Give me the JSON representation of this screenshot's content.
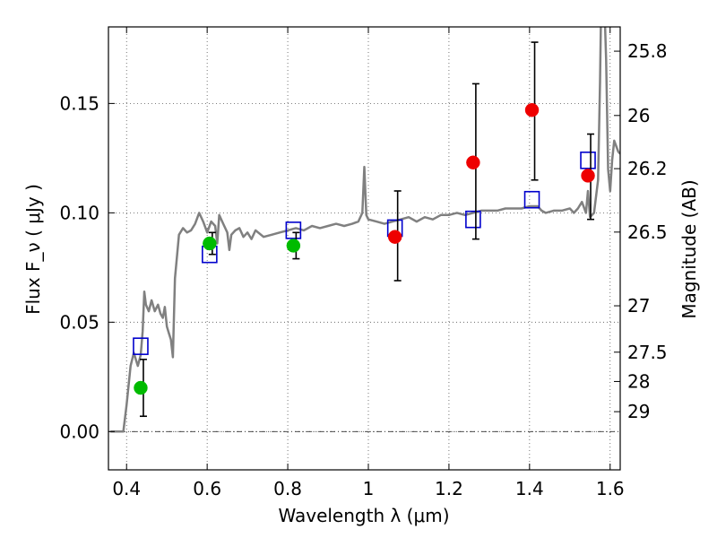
{
  "chart_data": {
    "type": "scatter",
    "xlabel": "Wavelength λ (μm)",
    "ylabel_left": "Flux F_ν ( μJy )",
    "ylabel_right": "Magnitude (AB)",
    "xlim": [
      0.355,
      1.625
    ],
    "ylim": [
      -0.0175,
      0.185
    ],
    "grid": true,
    "x_ticks": [
      {
        "value": 0.4,
        "label": "0.4"
      },
      {
        "value": 0.6,
        "label": "0.6"
      },
      {
        "value": 0.8,
        "label": "0.8"
      },
      {
        "value": 1.0,
        "label": "1"
      },
      {
        "value": 1.2,
        "label": "1.2"
      },
      {
        "value": 1.4,
        "label": "1.4"
      },
      {
        "value": 1.6,
        "label": "1.6"
      }
    ],
    "y_ticks": [
      {
        "value": 0.0,
        "label": "0.00"
      },
      {
        "value": 0.05,
        "label": "0.05"
      },
      {
        "value": 0.1,
        "label": "0.10"
      },
      {
        "value": 0.15,
        "label": "0.15"
      }
    ],
    "right_ticks": [
      {
        "flux": 0.1739,
        "label": "25.8"
      },
      {
        "flux": 0.1445,
        "label": "26"
      },
      {
        "flux": 0.1202,
        "label": "26.2"
      },
      {
        "flux": 0.0912,
        "label": "26.5"
      },
      {
        "flux": 0.0575,
        "label": "27"
      },
      {
        "flux": 0.0363,
        "label": "27.5"
      },
      {
        "flux": 0.0229,
        "label": "28"
      },
      {
        "flux": 0.0091,
        "label": "29"
      }
    ],
    "series": [
      {
        "name": "model_spectrum",
        "kind": "line",
        "color": "#808080",
        "points": [
          [
            0.36,
            0.0
          ],
          [
            0.38,
            0.0
          ],
          [
            0.392,
            0.0
          ],
          [
            0.4,
            0.012
          ],
          [
            0.41,
            0.03
          ],
          [
            0.418,
            0.036
          ],
          [
            0.428,
            0.03
          ],
          [
            0.435,
            0.035
          ],
          [
            0.44,
            0.046
          ],
          [
            0.444,
            0.064
          ],
          [
            0.448,
            0.058
          ],
          [
            0.455,
            0.055
          ],
          [
            0.462,
            0.06
          ],
          [
            0.47,
            0.055
          ],
          [
            0.478,
            0.058
          ],
          [
            0.484,
            0.054
          ],
          [
            0.49,
            0.052
          ],
          [
            0.495,
            0.057
          ],
          [
            0.5,
            0.048
          ],
          [
            0.505,
            0.045
          ],
          [
            0.51,
            0.042
          ],
          [
            0.515,
            0.034
          ],
          [
            0.52,
            0.07
          ],
          [
            0.53,
            0.09
          ],
          [
            0.54,
            0.093
          ],
          [
            0.55,
            0.091
          ],
          [
            0.56,
            0.092
          ],
          [
            0.57,
            0.095
          ],
          [
            0.58,
            0.1
          ],
          [
            0.59,
            0.096
          ],
          [
            0.6,
            0.091
          ],
          [
            0.61,
            0.096
          ],
          [
            0.62,
            0.094
          ],
          [
            0.625,
            0.086
          ],
          [
            0.63,
            0.099
          ],
          [
            0.64,
            0.095
          ],
          [
            0.65,
            0.091
          ],
          [
            0.655,
            0.083
          ],
          [
            0.66,
            0.09
          ],
          [
            0.67,
            0.092
          ],
          [
            0.68,
            0.093
          ],
          [
            0.69,
            0.089
          ],
          [
            0.7,
            0.091
          ],
          [
            0.71,
            0.088
          ],
          [
            0.72,
            0.092
          ],
          [
            0.74,
            0.089
          ],
          [
            0.76,
            0.09
          ],
          [
            0.78,
            0.091
          ],
          [
            0.8,
            0.092
          ],
          [
            0.82,
            0.093
          ],
          [
            0.84,
            0.092
          ],
          [
            0.86,
            0.094
          ],
          [
            0.88,
            0.093
          ],
          [
            0.9,
            0.094
          ],
          [
            0.92,
            0.095
          ],
          [
            0.94,
            0.094
          ],
          [
            0.96,
            0.095
          ],
          [
            0.975,
            0.096
          ],
          [
            0.985,
            0.1
          ],
          [
            0.99,
            0.121
          ],
          [
            0.995,
            0.099
          ],
          [
            1.0,
            0.097
          ],
          [
            1.02,
            0.096
          ],
          [
            1.04,
            0.095
          ],
          [
            1.06,
            0.096
          ],
          [
            1.08,
            0.097
          ],
          [
            1.1,
            0.098
          ],
          [
            1.12,
            0.096
          ],
          [
            1.14,
            0.098
          ],
          [
            1.16,
            0.097
          ],
          [
            1.18,
            0.099
          ],
          [
            1.2,
            0.099
          ],
          [
            1.22,
            0.1
          ],
          [
            1.24,
            0.099
          ],
          [
            1.26,
            0.1
          ],
          [
            1.28,
            0.101
          ],
          [
            1.3,
            0.101
          ],
          [
            1.32,
            0.101
          ],
          [
            1.34,
            0.102
          ],
          [
            1.36,
            0.102
          ],
          [
            1.38,
            0.102
          ],
          [
            1.4,
            0.103
          ],
          [
            1.42,
            0.103
          ],
          [
            1.43,
            0.101
          ],
          [
            1.44,
            0.1
          ],
          [
            1.46,
            0.101
          ],
          [
            1.48,
            0.101
          ],
          [
            1.5,
            0.102
          ],
          [
            1.51,
            0.1
          ],
          [
            1.52,
            0.102
          ],
          [
            1.53,
            0.105
          ],
          [
            1.54,
            0.1
          ],
          [
            1.545,
            0.11
          ],
          [
            1.55,
            0.098
          ],
          [
            1.56,
            0.1
          ],
          [
            1.57,
            0.115
          ],
          [
            1.575,
            0.16
          ],
          [
            1.578,
            0.2
          ],
          [
            1.585,
            0.2
          ],
          [
            1.59,
            0.17
          ],
          [
            1.595,
            0.12
          ],
          [
            1.6,
            0.11
          ],
          [
            1.605,
            0.124
          ],
          [
            1.61,
            0.133
          ],
          [
            1.62,
            0.128
          ],
          [
            1.625,
            0.127
          ]
        ]
      },
      {
        "name": "model_photometry",
        "kind": "open-square",
        "color": "#0000cc",
        "points": [
          [
            0.435,
            0.039
          ],
          [
            0.606,
            0.081
          ],
          [
            0.814,
            0.092
          ],
          [
            1.066,
            0.093
          ],
          [
            1.26,
            0.097
          ],
          [
            1.406,
            0.106
          ],
          [
            1.545,
            0.124
          ]
        ]
      },
      {
        "name": "observed_green",
        "kind": "filled-circle",
        "color": "#00bb00",
        "points": [
          [
            0.435,
            0.02
          ],
          [
            0.606,
            0.086
          ],
          [
            0.814,
            0.085
          ]
        ],
        "errors": [
          [
            0.013,
            0.013
          ],
          [
            0.005,
            0.005
          ],
          [
            0.006,
            0.006
          ]
        ]
      },
      {
        "name": "observed_red",
        "kind": "filled-circle",
        "color": "#ee0000",
        "points": [
          [
            1.066,
            0.089
          ],
          [
            1.26,
            0.123
          ],
          [
            1.406,
            0.147
          ],
          [
            1.545,
            0.117
          ]
        ],
        "errors": [
          [
            0.02,
            0.021
          ],
          [
            0.035,
            0.036
          ],
          [
            0.032,
            0.031
          ],
          [
            0.02,
            0.019
          ]
        ]
      }
    ]
  }
}
